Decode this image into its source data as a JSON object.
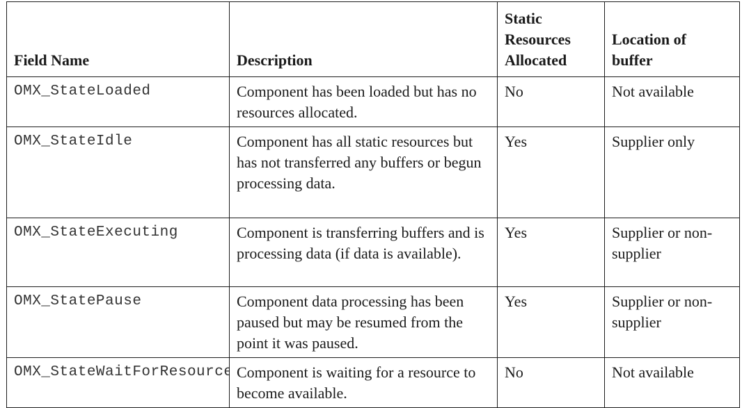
{
  "table": {
    "headers": {
      "field_name": "Field Name",
      "description": "Description",
      "static_resources": "Static\nResources\nAllocated",
      "location": "Location of\nbuffer"
    },
    "rows": [
      {
        "field": "OMX_StateLoaded",
        "description": "Component has been loaded but has no resources allocated.",
        "static": "No",
        "location": "Not available"
      },
      {
        "field": "OMX_StateIdle",
        "description": "Component has all static resources but has not transferred any buffers or begun processing data.",
        "static": "Yes",
        "location": "Supplier only"
      },
      {
        "field": "OMX_StateExecuting",
        "description": "Component is transferring buffers and is processing data (if data is available).",
        "static": "Yes",
        "location": "Supplier or non-supplier"
      },
      {
        "field": "OMX_StatePause",
        "description": "Component data processing has been paused but may be resumed from the point it was paused.",
        "static": "Yes",
        "location": "Supplier or non-supplier"
      },
      {
        "field": "OMX_StateWaitForResources",
        "description": "Component is waiting for a resource to become available.",
        "static": "No",
        "location": "Not available"
      }
    ]
  }
}
